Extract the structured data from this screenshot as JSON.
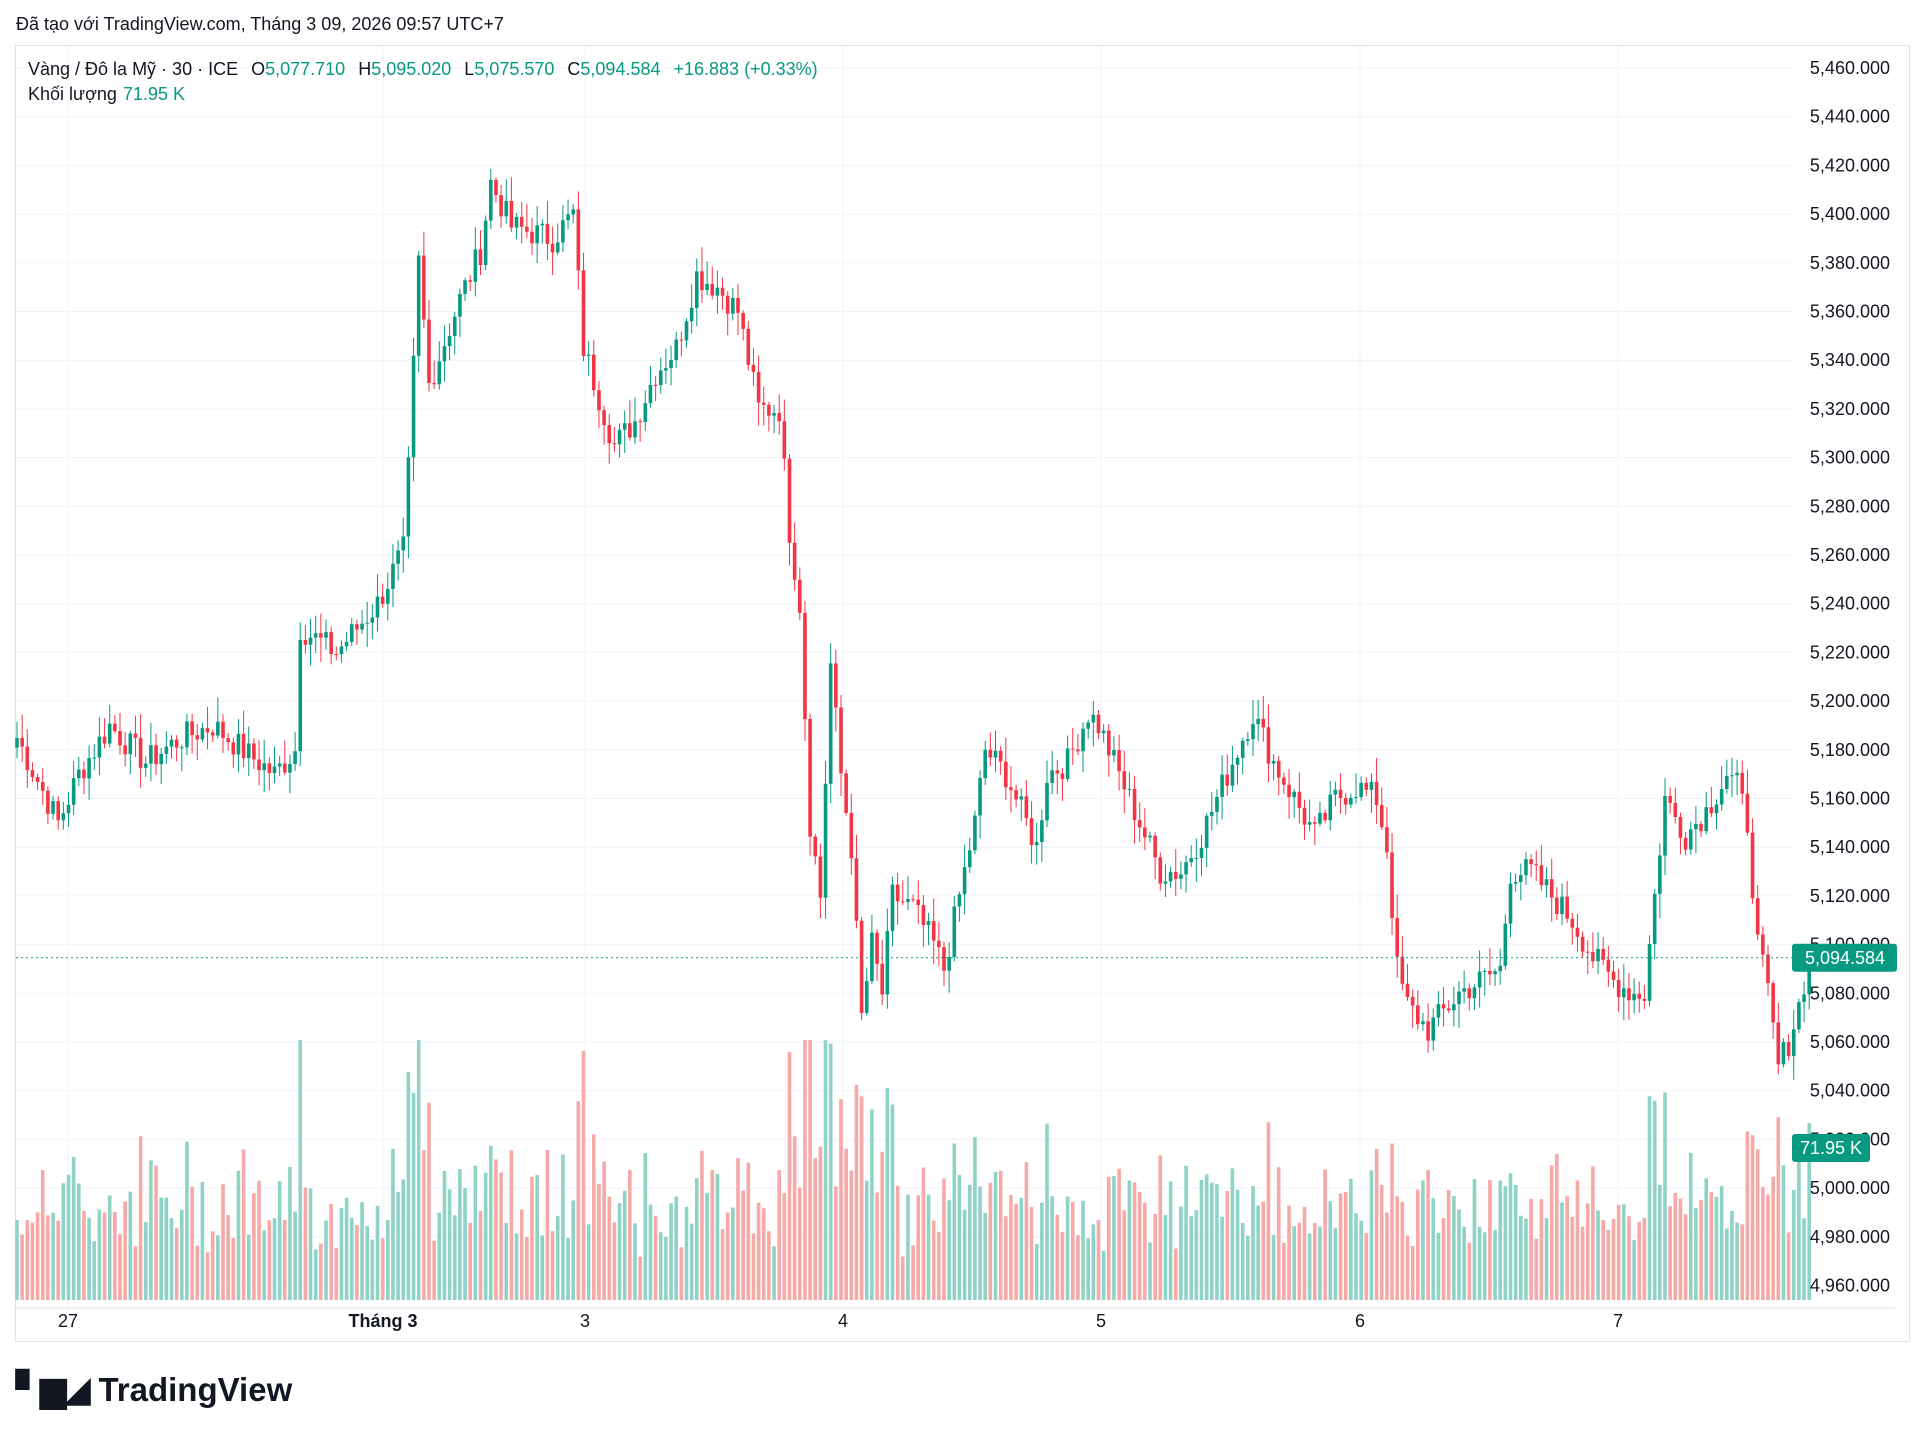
{
  "created_note": "Đã tạo với TradingView.com, Tháng 3 09, 2026 09:57 UTC+7",
  "legend": {
    "symbol": "Vàng / Đô la Mỹ · 30 · ICE",
    "o_label": "O",
    "o_value": "5,077.710",
    "h_label": "H",
    "h_value": "5,095.020",
    "l_label": "L",
    "l_value": "5,075.570",
    "c_label": "C",
    "c_value": "5,094.584",
    "change": "+16.883 (+0.33%)",
    "volume_label": "Khối lượng",
    "volume_value": "71.95 K"
  },
  "price_badge": "5,094.584",
  "volume_badge": "71.95 K",
  "brand": "TradingView",
  "colors": {
    "up": "#089981",
    "down": "#f23645",
    "up_vol": "#8fd2c6",
    "down_vol": "#f7a9a7",
    "grid": "#f0f3fa",
    "badge": "#089981"
  },
  "chart_data": {
    "type": "candlestick",
    "y_ticks": [
      "5,460.000",
      "5,440.000",
      "5,420.000",
      "5,400.000",
      "5,380.000",
      "5,360.000",
      "5,340.000",
      "5,320.000",
      "5,300.000",
      "5,280.000",
      "5,260.000",
      "5,240.000",
      "5,220.000",
      "5,200.000",
      "5,180.000",
      "5,160.000",
      "5,140.000",
      "5,120.000",
      "5,100.000",
      "5,080.000",
      "5,060.000",
      "5,040.000",
      "5,020.000",
      "5,000.000",
      "4,980.000",
      "4,960.000"
    ],
    "x_ticks": [
      "27",
      "Tháng 3",
      "3",
      "4",
      "5",
      "6",
      "7"
    ],
    "ylim": [
      4955,
      5465
    ],
    "last_price": 5094.584,
    "anchors": [
      [
        0,
        5185
      ],
      [
        8,
        5150
      ],
      [
        12,
        5170
      ],
      [
        18,
        5190
      ],
      [
        25,
        5175
      ],
      [
        32,
        5185
      ],
      [
        38,
        5190
      ],
      [
        45,
        5178
      ],
      [
        50,
        5170
      ],
      [
        54,
        5180
      ],
      [
        55,
        5230
      ],
      [
        62,
        5220
      ],
      [
        70,
        5240
      ],
      [
        75,
        5262
      ],
      [
        76,
        5295
      ],
      [
        78,
        5380
      ],
      [
        80,
        5330
      ],
      [
        86,
        5365
      ],
      [
        90,
        5385
      ],
      [
        92,
        5413
      ],
      [
        96,
        5395
      ],
      [
        104,
        5390
      ],
      [
        108,
        5400
      ],
      [
        110,
        5345
      ],
      [
        116,
        5305
      ],
      [
        120,
        5315
      ],
      [
        124,
        5335
      ],
      [
        128,
        5345
      ],
      [
        132,
        5375
      ],
      [
        136,
        5370
      ],
      [
        140,
        5360
      ],
      [
        144,
        5320
      ],
      [
        148,
        5320
      ],
      [
        150,
        5270
      ],
      [
        152,
        5240
      ],
      [
        154,
        5150
      ],
      [
        156,
        5120
      ],
      [
        158,
        5215
      ],
      [
        160,
        5170
      ],
      [
        162,
        5140
      ],
      [
        164,
        5070
      ],
      [
        166,
        5100
      ],
      [
        168,
        5080
      ],
      [
        170,
        5120
      ],
      [
        174,
        5115
      ],
      [
        178,
        5100
      ],
      [
        180,
        5090
      ],
      [
        184,
        5130
      ],
      [
        186,
        5150
      ],
      [
        188,
        5180
      ],
      [
        192,
        5170
      ],
      [
        196,
        5150
      ],
      [
        198,
        5140
      ],
      [
        200,
        5170
      ],
      [
        204,
        5175
      ],
      [
        208,
        5195
      ],
      [
        210,
        5190
      ],
      [
        214,
        5170
      ],
      [
        218,
        5150
      ],
      [
        222,
        5130
      ],
      [
        226,
        5130
      ],
      [
        230,
        5145
      ],
      [
        234,
        5165
      ],
      [
        238,
        5185
      ],
      [
        240,
        5195
      ],
      [
        244,
        5175
      ],
      [
        248,
        5160
      ],
      [
        252,
        5145
      ],
      [
        256,
        5160
      ],
      [
        260,
        5165
      ],
      [
        264,
        5160
      ],
      [
        266,
        5140
      ],
      [
        268,
        5090
      ],
      [
        270,
        5075
      ],
      [
        274,
        5065
      ],
      [
        278,
        5075
      ],
      [
        280,
        5080
      ],
      [
        284,
        5085
      ],
      [
        288,
        5090
      ],
      [
        290,
        5130
      ],
      [
        294,
        5130
      ],
      [
        298,
        5120
      ],
      [
        302,
        5110
      ],
      [
        306,
        5095
      ],
      [
        310,
        5085
      ],
      [
        314,
        5080
      ],
      [
        316,
        5080
      ],
      [
        318,
        5120
      ],
      [
        320,
        5160
      ],
      [
        324,
        5145
      ],
      [
        328,
        5155
      ],
      [
        332,
        5170
      ],
      [
        334,
        5165
      ],
      [
        336,
        5150
      ],
      [
        338,
        5100
      ],
      [
        340,
        5080
      ],
      [
        342,
        5050
      ],
      [
        344,
        5060
      ],
      [
        346,
        5075
      ],
      [
        348,
        5094.584
      ]
    ]
  }
}
